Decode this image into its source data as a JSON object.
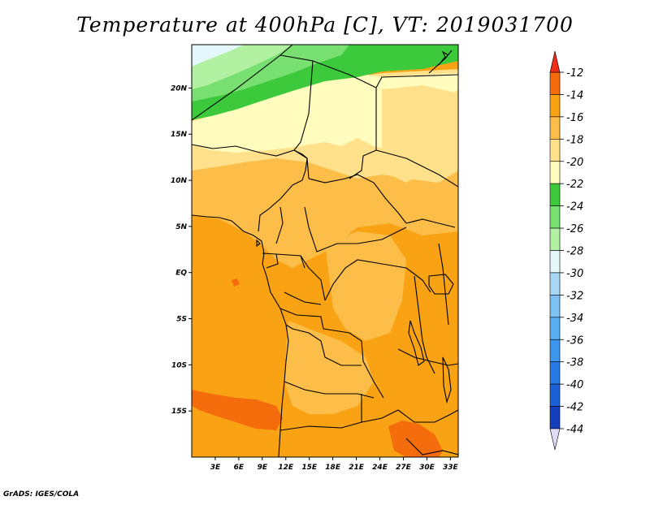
{
  "title": "Temperature at 400hPa [C], VT: 2019031700",
  "credit": "GrADS: IGES/COLA",
  "map": {
    "lon_ticks": [
      "3E",
      "6E",
      "9E",
      "12E",
      "15E",
      "18E",
      "21E",
      "24E",
      "27E",
      "30E",
      "33E"
    ],
    "lat_ticks": [
      "20N",
      "15N",
      "10N",
      "5N",
      "EQ",
      "5S",
      "10S",
      "15S"
    ]
  },
  "colorbar": {
    "labels": [
      "-12",
      "-14",
      "-16",
      "-18",
      "-20",
      "-22",
      "-24",
      "-26",
      "-28",
      "-30",
      "-32",
      "-34",
      "-36",
      "-38",
      "-40",
      "-42",
      "-44"
    ],
    "colors": [
      "#e0dcf6",
      "#0c1e80",
      "#1440c0",
      "#1c60d8",
      "#2878e8",
      "#3c96ee",
      "#5aaef2",
      "#7ec2f4",
      "#a6d8f6",
      "#e4f8fc",
      "#b2f0a2",
      "#78e070",
      "#3cca3c",
      "#fffcbe",
      "#fee18a",
      "#fcbe48",
      "#f9a314",
      "#f46c0c",
      "#ee2c1a"
    ],
    "color_order": "bottom-to-top"
  },
  "colors": {
    "ocean_orange": "#f9a314",
    "mid_orange": "#fcbe48",
    "light_yellow": "#fee18a",
    "pale_yellow": "#fffcbe",
    "green": "#3cca3c",
    "light_green": "#78e070",
    "pale_green": "#b2f0a2",
    "cyan_white": "#e4f8fc",
    "dark_orange": "#f46c0c"
  }
}
